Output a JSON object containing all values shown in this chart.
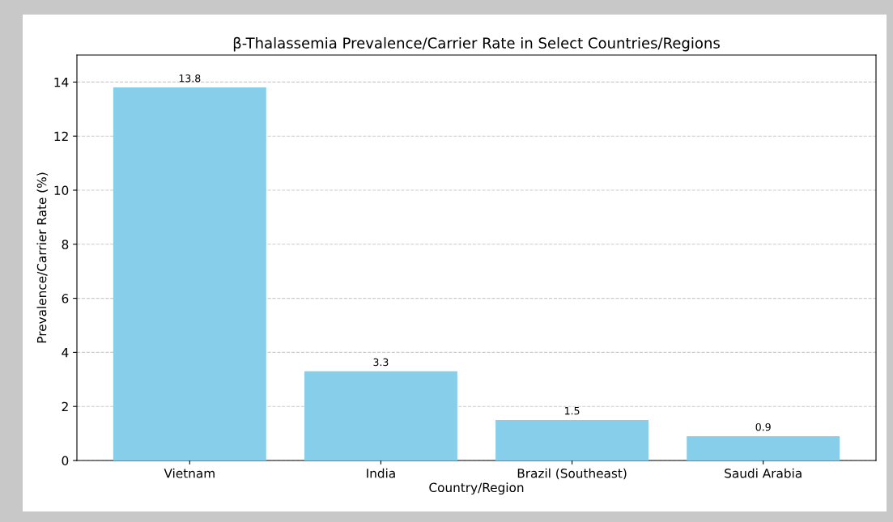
{
  "chart_data": {
    "type": "bar",
    "title": "β-Thalassemia Prevalence/Carrier Rate in Select Countries/Regions",
    "xlabel": "Country/Region",
    "ylabel": "Prevalence/Carrier Rate (%)",
    "categories": [
      "Vietnam",
      "India",
      "Brazil (Southeast)",
      "Saudi Arabia"
    ],
    "values": [
      13.8,
      3.3,
      1.5,
      0.9
    ],
    "color": "#87ceeb",
    "ylim": [
      0,
      15
    ],
    "yticks": [
      0,
      2,
      4,
      6,
      8,
      10,
      12,
      14
    ],
    "grid": "y",
    "data_labels": true
  }
}
